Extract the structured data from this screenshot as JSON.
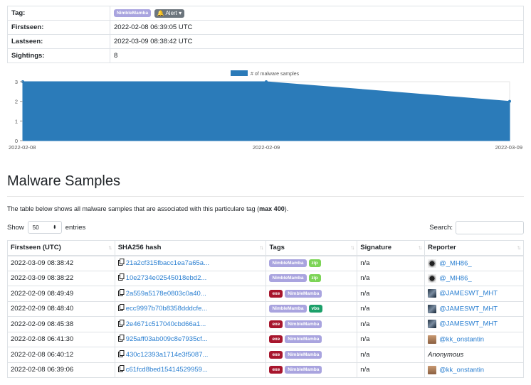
{
  "info": {
    "tag_label": "Tag:",
    "tag_badge": "NimbleMamba",
    "alert_label": "Alert",
    "firstseen_label": "Firstseen:",
    "firstseen_value": "2022-02-08 06:39:05 UTC",
    "lastseen_label": "Lastseen:",
    "lastseen_value": "2022-03-09 08:38:42 UTC",
    "sightings_label": "Sightings:",
    "sightings_value": "8"
  },
  "chart_data": {
    "type": "area",
    "legend": "# of malware samples",
    "x": [
      "2022-02-08",
      "2022-02-09",
      "2022-03-09"
    ],
    "values": [
      3,
      3,
      2
    ],
    "ylim": [
      0,
      3
    ],
    "yticks": [
      "3",
      "2",
      "1",
      "0"
    ],
    "color": "#2b7bb9",
    "legend_position": "top-center"
  },
  "section": {
    "title": "Malware Samples",
    "desc_prefix": "The table below shows all malware samples that are associated with this particulare tag (",
    "desc_bold": "max 400",
    "desc_suffix": ")."
  },
  "controls": {
    "show_label": "Show",
    "entries_value": "50",
    "entries_label": "entries",
    "search_label": "Search:"
  },
  "table": {
    "headers": [
      "Firstseen (UTC)",
      "SHA256 hash",
      "Tags",
      "Signature",
      "Reporter"
    ],
    "rows": [
      {
        "firstseen": "2022-03-09 08:38:42",
        "hash": "21a2cf315fbacc1ea7a65a...",
        "tags": [
          "NimbleMamba",
          "zip"
        ],
        "signature": "n/a",
        "reporter": "@_MH86_",
        "avatar": "mh"
      },
      {
        "firstseen": "2022-03-09 08:38:22",
        "hash": "10e2734e02545018ebd2...",
        "tags": [
          "NimbleMamba",
          "zip"
        ],
        "signature": "n/a",
        "reporter": "@_MH86_",
        "avatar": "mh"
      },
      {
        "firstseen": "2022-02-09 08:49:49",
        "hash": "2a559a5178e0803c0a40...",
        "tags": [
          "exe",
          "NimbleMamba"
        ],
        "signature": "n/a",
        "reporter": "@JAMESWT_MHT",
        "avatar": "jw"
      },
      {
        "firstseen": "2022-02-09 08:48:40",
        "hash": "ecc9997b70b8358dddcfe...",
        "tags": [
          "NimbleMamba",
          "vbs"
        ],
        "signature": "n/a",
        "reporter": "@JAMESWT_MHT",
        "avatar": "jw"
      },
      {
        "firstseen": "2022-02-09 08:45:38",
        "hash": "2e4671c517040cbd66a1...",
        "tags": [
          "exe",
          "NimbleMamba"
        ],
        "signature": "n/a",
        "reporter": "@JAMESWT_MHT",
        "avatar": "jw"
      },
      {
        "firstseen": "2022-02-08 06:41:30",
        "hash": "925aff03ab009c8e7935cf...",
        "tags": [
          "exe",
          "NimbleMamba"
        ],
        "signature": "n/a",
        "reporter": "@kk_onstantin",
        "avatar": "kk"
      },
      {
        "firstseen": "2022-02-08 06:40:12",
        "hash": "430c12393a1714e3f5087...",
        "tags": [
          "exe",
          "NimbleMamba"
        ],
        "signature": "n/a",
        "reporter": "Anonymous",
        "avatar": ""
      },
      {
        "firstseen": "2022-02-08 06:39:06",
        "hash": "c61fcd8bed15414529959...",
        "tags": [
          "exe",
          "NimbleMamba"
        ],
        "signature": "n/a",
        "reporter": "@kk_onstantin",
        "avatar": "kk"
      }
    ]
  }
}
